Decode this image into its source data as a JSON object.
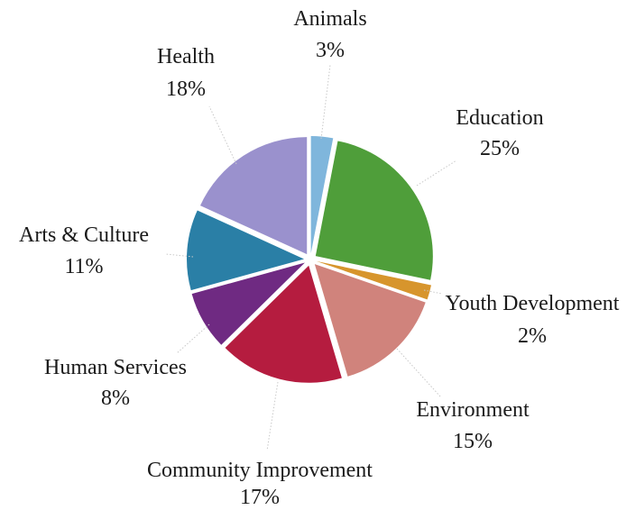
{
  "chart_data": {
    "type": "pie",
    "title": "",
    "slices": [
      {
        "name": "Animals",
        "label": "3%",
        "value": 3,
        "color": "#7fb6dc"
      },
      {
        "name": "Education",
        "label": "25%",
        "value": 25,
        "color": "#4f9e3a"
      },
      {
        "name": "Youth Development",
        "label": "2%",
        "value": 2,
        "color": "#d7952c"
      },
      {
        "name": "Environment",
        "label": "15%",
        "value": 15,
        "color": "#d0837c"
      },
      {
        "name": "Community Improvement",
        "label": "17%",
        "value": 17,
        "color": "#b51c3f"
      },
      {
        "name": "Human Services",
        "label": "8%",
        "value": 8,
        "color": "#6f2a82"
      },
      {
        "name": "Arts & Culture",
        "label": "11%",
        "value": 11,
        "color": "#2a7fa6"
      },
      {
        "name": "Health",
        "label": "18%",
        "value": 18,
        "color": "#9a91cd"
      }
    ],
    "start_angle_deg": 0,
    "direction": "clockwise",
    "exploded": true,
    "legend": "none"
  }
}
